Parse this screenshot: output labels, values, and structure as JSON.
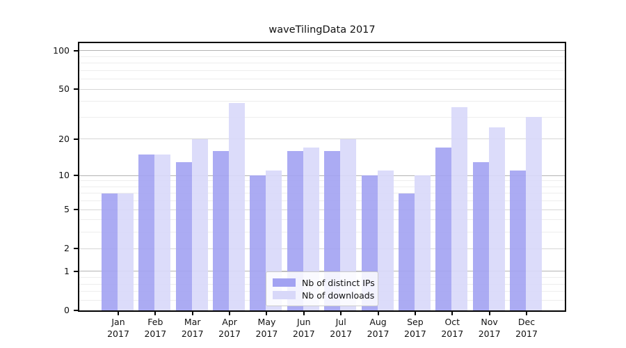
{
  "chart_data": {
    "type": "bar",
    "title": "waveTilingData 2017",
    "categories": [
      "Jan",
      "Feb",
      "Mar",
      "Apr",
      "May",
      "Jun",
      "Jul",
      "Aug",
      "Sep",
      "Oct",
      "Nov",
      "Dec"
    ],
    "year_label": "2017",
    "series": [
      {
        "name": "Nb of distinct IPs",
        "color": "#a2a2f2",
        "values": [
          7,
          15,
          13,
          16,
          10,
          16,
          16,
          10,
          7,
          17,
          13,
          11
        ]
      },
      {
        "name": "Nb of downloads",
        "color": "#d8d8f9",
        "values": [
          7,
          15,
          20,
          39,
          11,
          17,
          20,
          11,
          10,
          36,
          25,
          30
        ]
      }
    ],
    "yscale": "log1p",
    "ylim": [
      0,
      115
    ],
    "y_major_ticks": [
      100,
      50,
      20,
      10,
      5,
      2,
      1,
      0
    ],
    "y_minor_ticks": [
      0.2,
      0.4,
      0.6,
      0.8,
      3,
      4,
      6,
      7,
      8,
      9,
      30,
      40,
      60,
      70,
      80,
      90
    ],
    "grid": true,
    "legend_position": "bottom-center",
    "xlabel": "",
    "ylabel": ""
  }
}
